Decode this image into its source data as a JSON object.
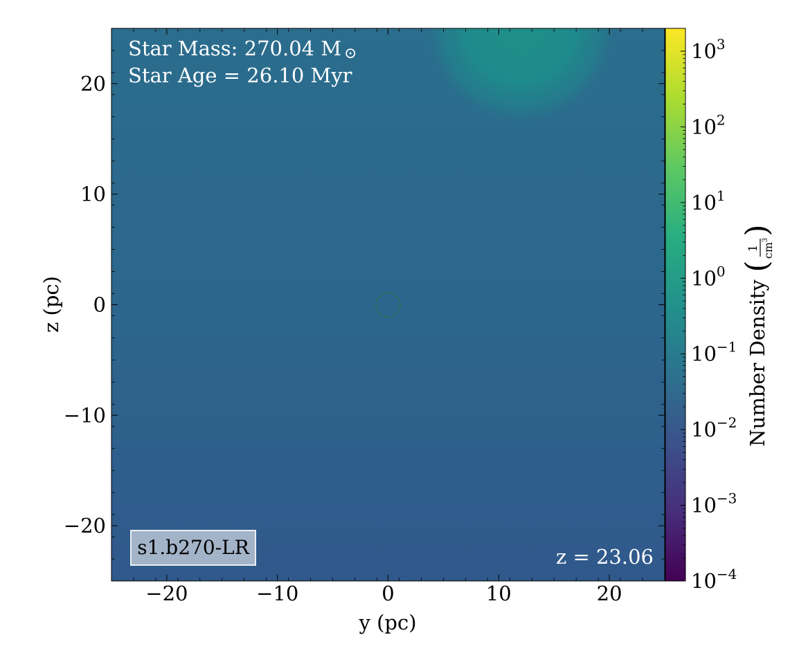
{
  "chart_data": {
    "type": "heatmap",
    "xlabel": "y  (pc)",
    "ylabel": "z  (pc)",
    "xlim": [
      -25,
      25
    ],
    "ylim": [
      -25,
      25
    ],
    "x_ticks": [
      -20,
      -10,
      0,
      10,
      20
    ],
    "y_ticks": [
      -20,
      -10,
      0,
      10,
      20
    ],
    "x_tick_labels": [
      "−20",
      "−10",
      "0",
      "10",
      "20"
    ],
    "y_tick_labels": [
      "−20",
      "−10",
      "0",
      "10",
      "20"
    ],
    "colorbar": {
      "label": "Number Density",
      "unit_numerator": "1",
      "unit_denominator": "cm",
      "unit_denominator_power": "3",
      "scale": "log",
      "range": [
        0.0001,
        2000
      ],
      "colormap": "viridis",
      "ticks": [
        {
          "base": "10",
          "exp": "3",
          "value": 1000
        },
        {
          "base": "10",
          "exp": "2",
          "value": 100
        },
        {
          "base": "10",
          "exp": "1",
          "value": 10
        },
        {
          "base": "10",
          "exp": "0",
          "value": 1
        },
        {
          "base": "10",
          "exp": "−1",
          "value": 0.1
        },
        {
          "base": "10",
          "exp": "−2",
          "value": 0.01
        },
        {
          "base": "10",
          "exp": "−3",
          "value": 0.001
        },
        {
          "base": "10",
          "exp": "−4",
          "value": 0.0001
        }
      ]
    },
    "field_description": "approximate density levels: background ~0.02–0.05 cm^-3, dense clump at top near y≈12 pc, z≈25 pc ~0.5 cm^-3",
    "background_density": 0.03,
    "clump": {
      "y_center": 12,
      "z_center": 25,
      "radius": 9,
      "peak_density": 0.5
    },
    "marker_circle": {
      "y": 0,
      "z": 0,
      "radius": 1.1,
      "color": "#2a8a2a",
      "style": "dashed"
    },
    "annotations": {
      "star_mass_prefix": "Star Mass: 270.04 M",
      "star_mass_symbol": "⊙",
      "star_age": "Star Age = 26.10 Myr",
      "redshift": "z = 23.06",
      "run_label": "s1.b270-LR"
    }
  }
}
